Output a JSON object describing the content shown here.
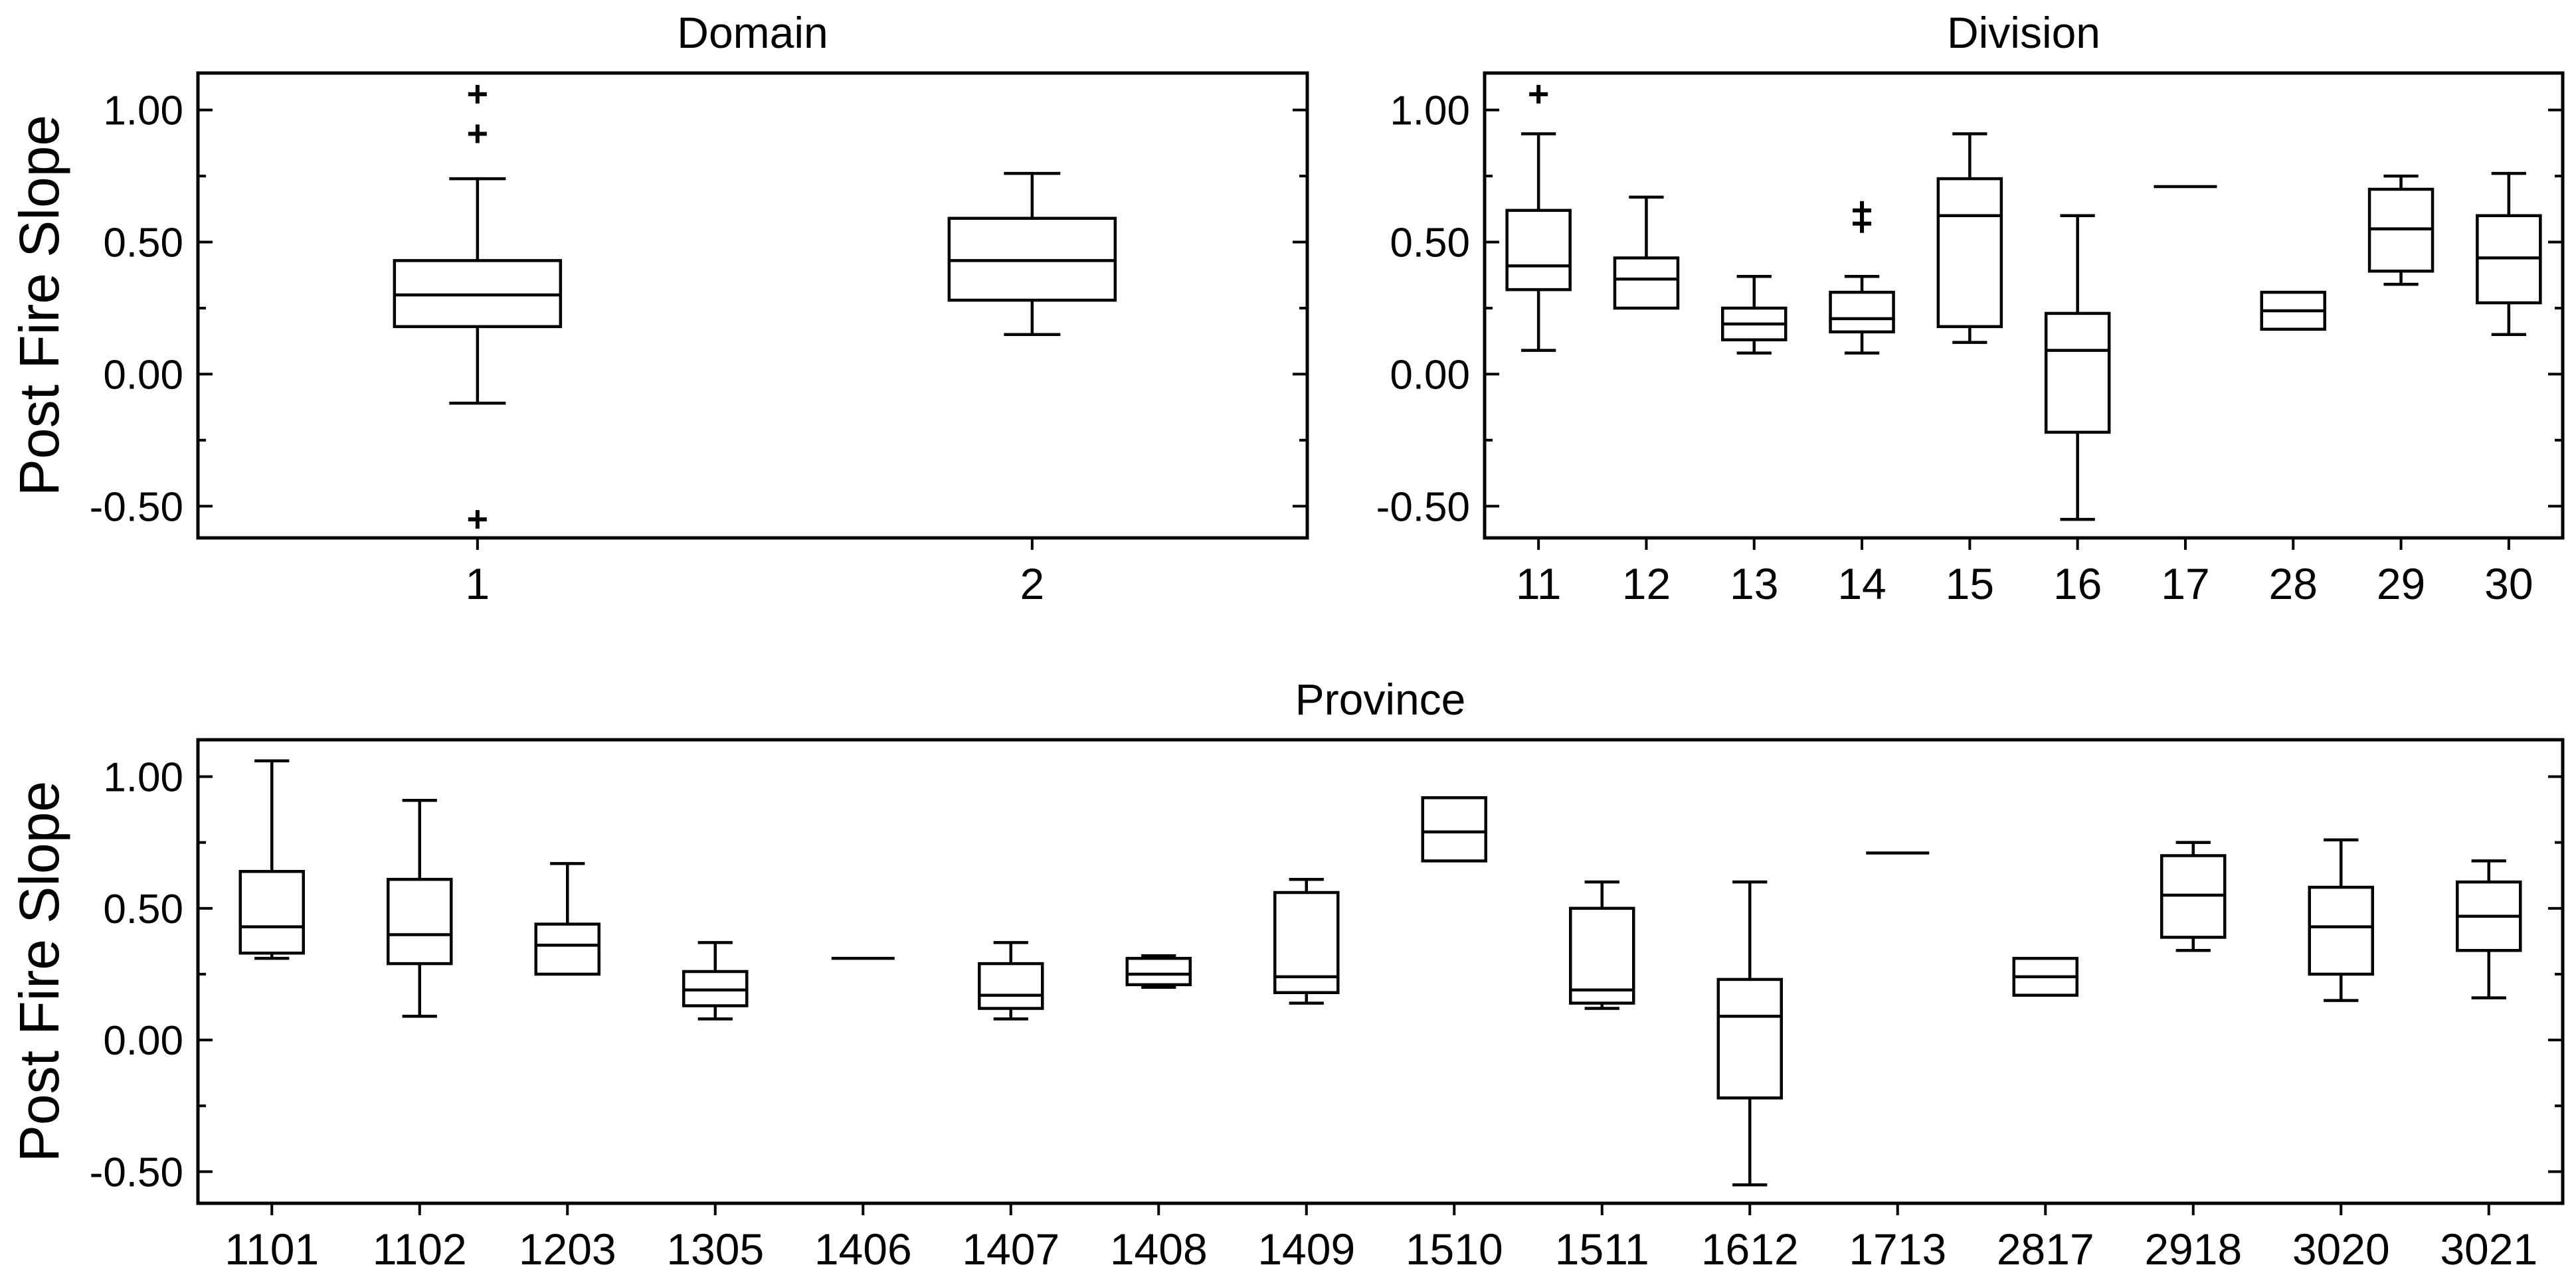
{
  "chart_data": [
    {
      "type": "box",
      "title": "Domain",
      "ylabel": "Post Fire Slope",
      "yticks": [
        "1.00",
        "0.50",
        "0.00",
        "-0.50"
      ],
      "ylim": [
        -0.62,
        1.14
      ],
      "categories": [
        "1",
        "2"
      ],
      "boxes": [
        {
          "label": "1",
          "whislo": -0.11,
          "q1": 0.18,
          "med": 0.3,
          "q3": 0.43,
          "whishi": 0.74,
          "outliers": [
            1.06,
            0.91,
            -0.55
          ]
        },
        {
          "label": "2",
          "whislo": 0.15,
          "q1": 0.28,
          "med": 0.43,
          "q3": 0.59,
          "whishi": 0.76,
          "outliers": []
        }
      ]
    },
    {
      "type": "box",
      "title": "Division",
      "ylabel": "",
      "yticks": [
        "1.00",
        "0.50",
        "0.00",
        "-0.50"
      ],
      "ylim": [
        -0.62,
        1.14
      ],
      "categories": [
        "11",
        "12",
        "13",
        "14",
        "15",
        "16",
        "17",
        "28",
        "29",
        "30"
      ],
      "boxes": [
        {
          "label": "11",
          "whislo": 0.09,
          "q1": 0.32,
          "med": 0.41,
          "q3": 0.62,
          "whishi": 0.91,
          "outliers": [
            1.06
          ]
        },
        {
          "label": "12",
          "whislo": 0.25,
          "q1": 0.25,
          "med": 0.36,
          "q3": 0.44,
          "whishi": 0.67,
          "outliers": []
        },
        {
          "label": "13",
          "whislo": 0.08,
          "q1": 0.13,
          "med": 0.19,
          "q3": 0.25,
          "whishi": 0.37,
          "outliers": []
        },
        {
          "label": "14",
          "whislo": 0.08,
          "q1": 0.16,
          "med": 0.21,
          "q3": 0.31,
          "whishi": 0.37,
          "outliers": [
            0.62,
            0.57
          ]
        },
        {
          "label": "15",
          "whislo": 0.12,
          "q1": 0.18,
          "med": 0.6,
          "q3": 0.74,
          "whishi": 0.91,
          "outliers": []
        },
        {
          "label": "16",
          "whislo": -0.55,
          "q1": -0.22,
          "med": 0.09,
          "q3": 0.23,
          "whishi": 0.6,
          "outliers": []
        },
        {
          "label": "17",
          "whislo": 0.71,
          "q1": 0.71,
          "med": 0.71,
          "q3": 0.71,
          "whishi": 0.71,
          "outliers": []
        },
        {
          "label": "28",
          "whislo": 0.17,
          "q1": 0.17,
          "med": 0.24,
          "q3": 0.31,
          "whishi": 0.31,
          "outliers": []
        },
        {
          "label": "29",
          "whislo": 0.34,
          "q1": 0.39,
          "med": 0.55,
          "q3": 0.7,
          "whishi": 0.75,
          "outliers": []
        },
        {
          "label": "30",
          "whislo": 0.15,
          "q1": 0.27,
          "med": 0.44,
          "q3": 0.6,
          "whishi": 0.76,
          "outliers": []
        }
      ]
    },
    {
      "type": "box",
      "title": "Province",
      "ylabel": "Post Fire Slope",
      "yticks": [
        "1.00",
        "0.50",
        "0.00",
        "-0.50"
      ],
      "ylim": [
        -0.62,
        1.14
      ],
      "categories": [
        "1101",
        "1102",
        "1203",
        "1305",
        "1406",
        "1407",
        "1408",
        "1409",
        "1510",
        "1511",
        "1612",
        "1713",
        "2817",
        "2918",
        "3020",
        "3021"
      ],
      "boxes": [
        {
          "label": "1101",
          "whislo": 0.31,
          "q1": 0.33,
          "med": 0.43,
          "q3": 0.64,
          "whishi": 1.06,
          "outliers": []
        },
        {
          "label": "1102",
          "whislo": 0.09,
          "q1": 0.29,
          "med": 0.4,
          "q3": 0.61,
          "whishi": 0.91,
          "outliers": []
        },
        {
          "label": "1203",
          "whislo": 0.25,
          "q1": 0.25,
          "med": 0.36,
          "q3": 0.44,
          "whishi": 0.67,
          "outliers": []
        },
        {
          "label": "1305",
          "whislo": 0.08,
          "q1": 0.13,
          "med": 0.19,
          "q3": 0.26,
          "whishi": 0.37,
          "outliers": []
        },
        {
          "label": "1406",
          "whislo": 0.31,
          "q1": 0.31,
          "med": 0.31,
          "q3": 0.31,
          "whishi": 0.31,
          "outliers": []
        },
        {
          "label": "1407",
          "whislo": 0.08,
          "q1": 0.12,
          "med": 0.17,
          "q3": 0.29,
          "whishi": 0.37,
          "outliers": []
        },
        {
          "label": "1408",
          "whislo": 0.2,
          "q1": 0.21,
          "med": 0.25,
          "q3": 0.31,
          "whishi": 0.32,
          "outliers": []
        },
        {
          "label": "1409",
          "whislo": 0.14,
          "q1": 0.18,
          "med": 0.24,
          "q3": 0.56,
          "whishi": 0.61,
          "outliers": []
        },
        {
          "label": "1510",
          "whislo": 0.68,
          "q1": 0.68,
          "med": 0.79,
          "q3": 0.92,
          "whishi": 0.92,
          "outliers": []
        },
        {
          "label": "1511",
          "whislo": 0.12,
          "q1": 0.14,
          "med": 0.19,
          "q3": 0.5,
          "whishi": 0.6,
          "outliers": []
        },
        {
          "label": "1612",
          "whislo": -0.55,
          "q1": -0.22,
          "med": 0.09,
          "q3": 0.23,
          "whishi": 0.6,
          "outliers": []
        },
        {
          "label": "1713",
          "whislo": 0.71,
          "q1": 0.71,
          "med": 0.71,
          "q3": 0.71,
          "whishi": 0.71,
          "outliers": []
        },
        {
          "label": "2817",
          "whislo": 0.17,
          "q1": 0.17,
          "med": 0.24,
          "q3": 0.31,
          "whishi": 0.31,
          "outliers": []
        },
        {
          "label": "2918",
          "whislo": 0.34,
          "q1": 0.39,
          "med": 0.55,
          "q3": 0.7,
          "whishi": 0.75,
          "outliers": []
        },
        {
          "label": "3020",
          "whislo": 0.15,
          "q1": 0.25,
          "med": 0.43,
          "q3": 0.58,
          "whishi": 0.76,
          "outliers": []
        },
        {
          "label": "3021",
          "whislo": 0.16,
          "q1": 0.34,
          "med": 0.47,
          "q3": 0.6,
          "whishi": 0.68,
          "outliers": []
        }
      ]
    }
  ]
}
